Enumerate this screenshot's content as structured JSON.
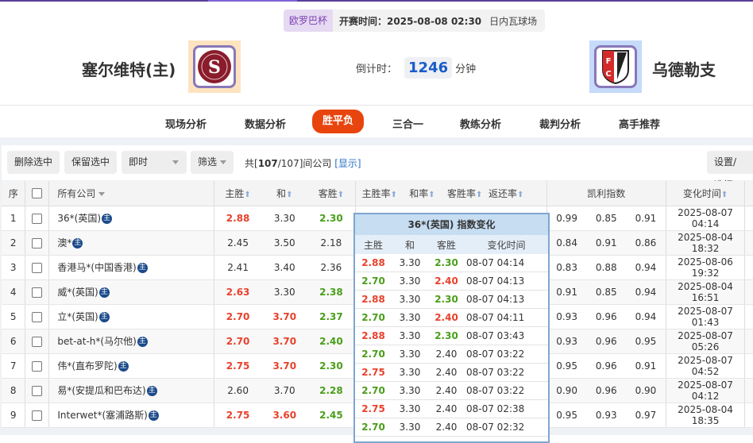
{
  "match": {
    "league": "欧罗巴杯",
    "start_time": "开赛时间：2025-08-08 02:30",
    "venue": "日内瓦球场",
    "home": "塞尔维特(主)",
    "away": "乌德勒支",
    "countdown_label": "倒计时：",
    "countdown_value": "1246",
    "countdown_unit": "分钟"
  },
  "nav": {
    "tabs": [
      "现场分析",
      "数据分析",
      "胜平负",
      "三合一",
      "教练分析",
      "裁判分析",
      "高手推荐"
    ],
    "active": "胜平负"
  },
  "toolbar": {
    "delete": "删除选中",
    "keep": "保留选中",
    "mode": "即时",
    "filter": "筛选",
    "summary_prefix": "共[",
    "summary_count": "107",
    "summary_suffix": "/107]间公司",
    "show_link": "[显示]",
    "settings": "设置/选择"
  },
  "table": {
    "headers": {
      "idx": "序",
      "company": "所有公司",
      "home": "主胜",
      "draw": "和",
      "away": "客胜",
      "home_rate": "主胜率",
      "draw_rate": "和率",
      "away_rate": "客胜率",
      "return_rate": "返还率",
      "kelly": "凯利指数",
      "time": "变化时间"
    },
    "badge": "主",
    "rows": [
      {
        "idx": "1",
        "company": "36*(英国)",
        "odds": [
          [
            "2.88",
            "up"
          ],
          [
            "3.30",
            ""
          ],
          [
            "2.30",
            "down"
          ]
        ],
        "kelly": [
          "0.99",
          "0.85",
          "0.91"
        ],
        "time": "2025-08-07 04:14"
      },
      {
        "idx": "2",
        "company": "澳*",
        "odds": [
          [
            "2.45",
            ""
          ],
          [
            "3.50",
            ""
          ],
          [
            "2.18",
            ""
          ]
        ],
        "kelly": [
          "0.84",
          "0.91",
          "0.86"
        ],
        "time": "2025-08-04 18:32"
      },
      {
        "idx": "3",
        "company": "香港马*(中国香港)",
        "odds": [
          [
            "2.41",
            ""
          ],
          [
            "3.40",
            ""
          ],
          [
            "2.36",
            ""
          ]
        ],
        "kelly": [
          "0.83",
          "0.88",
          "0.94"
        ],
        "time": "2025-08-06 19:32"
      },
      {
        "idx": "4",
        "company": "威*(英国)",
        "odds": [
          [
            "2.63",
            "up"
          ],
          [
            "3.30",
            ""
          ],
          [
            "2.38",
            "down"
          ]
        ],
        "kelly": [
          "0.91",
          "0.85",
          "0.94"
        ],
        "time": "2025-08-04 16:51"
      },
      {
        "idx": "5",
        "company": "立*(英国)",
        "odds": [
          [
            "2.70",
            "up"
          ],
          [
            "3.70",
            "up"
          ],
          [
            "2.37",
            "down"
          ]
        ],
        "kelly": [
          "0.93",
          "0.96",
          "0.94"
        ],
        "time": "2025-08-07 01:43"
      },
      {
        "idx": "6",
        "company": "bet-at-h*(马尔他)",
        "odds": [
          [
            "2.70",
            "up"
          ],
          [
            "3.70",
            "up"
          ],
          [
            "2.40",
            "down"
          ]
        ],
        "kelly": [
          "0.93",
          "0.96",
          "0.95"
        ],
        "time": "2025-08-07 05:26"
      },
      {
        "idx": "7",
        "company": "伟*(直布罗陀)",
        "odds": [
          [
            "2.75",
            "up"
          ],
          [
            "3.70",
            "up"
          ],
          [
            "2.30",
            "down"
          ]
        ],
        "kelly": [
          "0.95",
          "0.96",
          "0.91"
        ],
        "time": "2025-08-07 04:52"
      },
      {
        "idx": "8",
        "company": "易*(安提瓜和巴布达)",
        "odds": [
          [
            "2.60",
            ""
          ],
          [
            "3.70",
            ""
          ],
          [
            "2.28",
            "down"
          ]
        ],
        "kelly": [
          "0.90",
          "0.96",
          "0.90"
        ],
        "time": "2025-08-07 04:12"
      },
      {
        "idx": "9",
        "company": "Interwet*(塞浦路斯)",
        "odds": [
          [
            "2.75",
            "up"
          ],
          [
            "3.60",
            "up"
          ],
          [
            "2.45",
            "down"
          ]
        ],
        "kelly": [
          "0.95",
          "0.93",
          "0.97"
        ],
        "time": "2025-08-04 18:35"
      }
    ]
  },
  "popup": {
    "title": "36*(英国) 指数变化",
    "headers": [
      "主胜",
      "和",
      "客胜",
      "变化时间"
    ],
    "rows": [
      [
        [
          "2.88",
          "up"
        ],
        [
          "3.30",
          ""
        ],
        [
          "2.30",
          "down"
        ],
        "08-07 04:14"
      ],
      [
        [
          "2.70",
          "down"
        ],
        [
          "3.30",
          ""
        ],
        [
          "2.40",
          "up"
        ],
        "08-07 04:13"
      ],
      [
        [
          "2.88",
          "up"
        ],
        [
          "3.30",
          ""
        ],
        [
          "2.30",
          "down"
        ],
        "08-07 04:13"
      ],
      [
        [
          "2.70",
          "down"
        ],
        [
          "3.30",
          ""
        ],
        [
          "2.40",
          "up"
        ],
        "08-07 04:11"
      ],
      [
        [
          "2.88",
          "up"
        ],
        [
          "3.30",
          ""
        ],
        [
          "2.30",
          "down"
        ],
        "08-07 03:43"
      ],
      [
        [
          "2.70",
          "down"
        ],
        [
          "3.30",
          ""
        ],
        [
          "2.40",
          ""
        ],
        "08-07 03:22"
      ],
      [
        [
          "2.75",
          "up"
        ],
        [
          "3.30",
          ""
        ],
        [
          "2.40",
          ""
        ],
        "08-07 03:22"
      ],
      [
        [
          "2.70",
          "down"
        ],
        [
          "3.30",
          ""
        ],
        [
          "2.40",
          ""
        ],
        "08-07 03:22"
      ],
      [
        [
          "2.75",
          "up"
        ],
        [
          "3.30",
          ""
        ],
        [
          "2.40",
          ""
        ],
        "08-07 02:38"
      ],
      [
        [
          "2.70",
          "down"
        ],
        [
          "3.30",
          ""
        ],
        [
          "2.40",
          ""
        ],
        "08-07 02:32"
      ]
    ]
  },
  "colors": {
    "up": "#e8412c",
    "down": "#4a9e1a",
    "accent": "#e8450e",
    "link": "#2a6fc8",
    "brand": "#5a3f9a"
  }
}
